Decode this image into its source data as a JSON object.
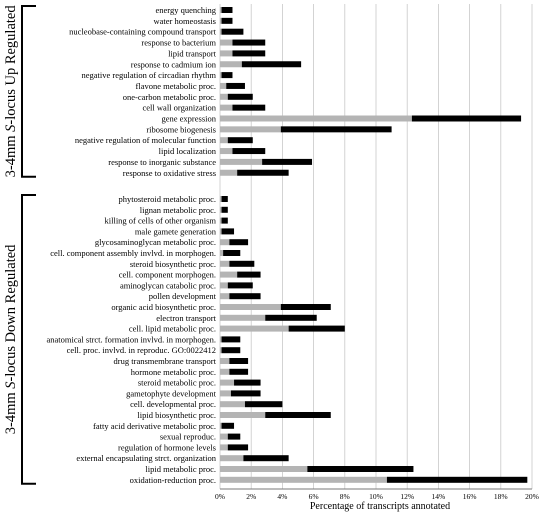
{
  "chart_data": {
    "type": "bar",
    "orientation": "horizontal",
    "stacking": "stacked",
    "xlabel": "Percentage of transcripts annotated",
    "xlim": [
      0,
      20
    ],
    "x_ticks": [
      "0%",
      "2%",
      "4%",
      "6%",
      "8%",
      "10%",
      "12%",
      "14%",
      "16%",
      "18%",
      "20%"
    ],
    "grid": "vertical gridlines",
    "series_colors": [
      "#b4b4b4",
      "#000000"
    ],
    "groups": [
      {
        "label_parts": [
          "3-4mm ",
          "S",
          "-locus Up Regulated"
        ],
        "categories": [
          "energy quenching",
          "water homeostasis",
          "nucleobase-containing compound transport",
          "response to bacterium",
          "lipid transport",
          "response to cadmium ion",
          "negative regulation of circadian rhythm",
          "flavone metabolic proc.",
          "one-carbon metabolic proc.",
          "cell wall organization",
          "gene expression",
          "ribosome biogenesis",
          "negative regulation of molecular function",
          "lipid localization",
          "response to inorganic substance",
          "response to oxidative stress"
        ],
        "grey": [
          0.1,
          0.1,
          0.1,
          0.8,
          0.8,
          1.4,
          0.1,
          0.4,
          0.5,
          0.8,
          12.3,
          3.9,
          0.5,
          0.8,
          2.7,
          1.1
        ],
        "total": [
          0.8,
          0.8,
          1.5,
          2.9,
          2.9,
          5.2,
          0.8,
          1.6,
          2.1,
          2.9,
          19.3,
          11.0,
          2.1,
          2.9,
          5.9,
          4.4
        ]
      },
      {
        "label_parts": [
          "3-4mm ",
          "S",
          "-locus Down Regulated"
        ],
        "categories": [
          "phytosteroid metabolic proc.",
          "lignan metabolic proc.",
          "killing of cells of other organism",
          "male gamete generation",
          "glycosaminoglycan metabolic proc.",
          "cell. component assembly invlvd. in morphogen.",
          "steroid biosynthetic proc.",
          "cell. component morphogen.",
          "aminoglycan catabolic proc.",
          "pollen development",
          "organic acid biosynthetic proc.",
          "electron transport",
          "cell. lipid metabolic proc.",
          "anatomical strct. formation invlvd. in morphogen.",
          "cell. proc. invlvd. in reproduc. GO:0022412",
          "drug transmembrane transport",
          "hormone metabolic proc.",
          "steroid metabolic proc.",
          "gametophyte development",
          "cell. developmental proc.",
          "lipid biosynthetic proc.",
          "fatty acid derivative metabolic proc.",
          "sexual reproduc.",
          "regulation of hormone levels",
          "external encapsulating strct. organization",
          "lipid metabolic proc.",
          "oxidation-reduction proc."
        ],
        "grey": [
          0.1,
          0.1,
          0.1,
          0.1,
          0.6,
          0.2,
          0.6,
          1.1,
          0.5,
          0.6,
          3.9,
          2.9,
          4.4,
          0.1,
          0.1,
          0.6,
          0.6,
          0.9,
          0.7,
          1.6,
          2.9,
          0.1,
          0.5,
          0.5,
          1.5,
          5.6,
          10.7
        ],
        "total": [
          0.5,
          0.5,
          0.5,
          0.9,
          1.8,
          1.3,
          2.2,
          2.6,
          2.1,
          2.6,
          7.1,
          6.2,
          8.0,
          1.3,
          1.3,
          1.8,
          1.8,
          2.6,
          2.6,
          4.0,
          7.1,
          0.9,
          1.3,
          1.8,
          4.4,
          12.4,
          19.7
        ]
      }
    ]
  }
}
